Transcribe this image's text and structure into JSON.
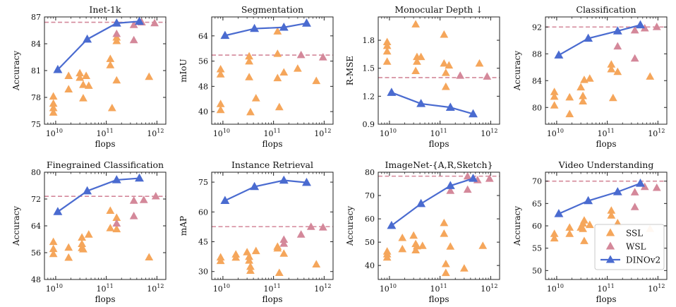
{
  "colors": {
    "ssl": "#F5A65B",
    "wsl": "#D4889A",
    "dino": "#4A6BD0",
    "wsl_line": "#D4889A"
  },
  "legend": {
    "position": "bottom-right-of-last-panel",
    "ssl": "SSL",
    "wsl": "WSL",
    "dino": "DINOv2"
  },
  "chart_data": [
    {
      "type": "scatter",
      "title": "Inet-1k",
      "xlabel": "flops",
      "ylabel": "Accuracy",
      "x_scale": "log",
      "xlim": [
        6000000000.0,
        1500000000000.0
      ],
      "ylim": [
        75,
        87
      ],
      "xticks": [
        {
          "v": 10000000000.0,
          "l": "10"
        },
        {
          "v": 100000000000.0,
          "l": "11"
        },
        {
          "v": 1000000000000.0,
          "l": "12"
        }
      ],
      "yticks": [
        75,
        78,
        81,
        84,
        87
      ],
      "ssl": [
        [
          9000000000.0,
          78.1
        ],
        [
          9000000000.0,
          77.3
        ],
        [
          9000000000.0,
          76.8
        ],
        [
          9000000000.0,
          76.3
        ],
        [
          18000000000.0,
          78.9
        ],
        [
          18000000000.0,
          80.4
        ],
        [
          30000000000.0,
          80.7
        ],
        [
          30000000000.0,
          80.2
        ],
        [
          35000000000.0,
          79.4
        ],
        [
          35000000000.0,
          77.9
        ],
        [
          40000000000.0,
          80.4
        ],
        [
          45000000000.0,
          79.3
        ],
        [
          120000000000.0,
          82.3
        ],
        [
          120000000000.0,
          81.6
        ],
        [
          130000000000.0,
          76.8
        ],
        [
          160000000000.0,
          84.7
        ],
        [
          160000000000.0,
          84.3
        ],
        [
          160000000000.0,
          79.9
        ],
        [
          700000000000.0,
          80.3
        ]
      ],
      "wsl": [
        [
          160000000000.0,
          85.1
        ],
        [
          350000000000.0,
          84.4
        ],
        [
          350000000000.0,
          86.1
        ],
        [
          500000000000.0,
          86.4
        ],
        [
          900000000000.0,
          86.3
        ]
      ],
      "dino": [
        [
          11000000000.0,
          81.1
        ],
        [
          42000000000.0,
          84.5
        ],
        [
          160000000000.0,
          86.3
        ],
        [
          450000000000.0,
          86.5
        ]
      ],
      "wsl_line": 86.4
    },
    {
      "type": "scatter",
      "title": "Segmentation",
      "xlabel": "flops",
      "ylabel": "mIoU",
      "x_scale": "log",
      "xlim": [
        6000000000.0,
        1500000000000.0
      ],
      "ylim": [
        36,
        70
      ],
      "xticks": [
        {
          "v": 10000000000.0,
          "l": "10"
        },
        {
          "v": 100000000000.0,
          "l": "11"
        },
        {
          "v": 1000000000000.0,
          "l": "12"
        }
      ],
      "yticks": [
        40,
        48,
        56,
        64
      ],
      "ssl": [
        [
          9000000000.0,
          53.4
        ],
        [
          9000000000.0,
          51.8
        ],
        [
          9000000000.0,
          42.4
        ],
        [
          9000000000.0,
          40.5
        ],
        [
          33000000000.0,
          57.5
        ],
        [
          33000000000.0,
          55.9
        ],
        [
          33000000000.0,
          50.9
        ],
        [
          35000000000.0,
          39.8
        ],
        [
          45000000000.0,
          44.2
        ],
        [
          120000000000.0,
          65.4
        ],
        [
          120000000000.0,
          58.3
        ],
        [
          120000000000.0,
          50.6
        ],
        [
          130000000000.0,
          41.4
        ],
        [
          160000000000.0,
          52.4
        ],
        [
          300000000000.0,
          53.6
        ],
        [
          700000000000.0,
          49.7
        ]
      ],
      "wsl": [
        [
          350000000000.0,
          57.9
        ],
        [
          950000000000.0,
          57.2
        ]
      ],
      "dino": [
        [
          11000000000.0,
          64.1
        ],
        [
          42000000000.0,
          66.3
        ],
        [
          160000000000.0,
          66.7
        ],
        [
          450000000000.0,
          68.0
        ]
      ],
      "wsl_line": 57.9
    },
    {
      "type": "scatter",
      "title": "Monocular Depth ↓",
      "xlabel": "flops",
      "ylabel": "R-MSE",
      "x_scale": "log",
      "xlim": [
        6000000000.0,
        1500000000000.0
      ],
      "ylim": [
        0.9,
        2.05
      ],
      "xticks": [
        {
          "v": 10000000000.0,
          "l": "10"
        },
        {
          "v": 100000000000.0,
          "l": "11"
        },
        {
          "v": 1000000000000.0,
          "l": "12"
        }
      ],
      "yticks": [
        0.9,
        1.2,
        1.5,
        1.8
      ],
      "ssl": [
        [
          9000000000.0,
          1.78
        ],
        [
          9000000000.0,
          1.74
        ],
        [
          9000000000.0,
          1.68
        ],
        [
          9000000000.0,
          1.57
        ],
        [
          33000000000.0,
          1.97
        ],
        [
          35000000000.0,
          1.62
        ],
        [
          35000000000.0,
          1.57
        ],
        [
          33000000000.0,
          1.47
        ],
        [
          42000000000.0,
          1.62
        ],
        [
          120000000000.0,
          1.86
        ],
        [
          120000000000.0,
          1.55
        ],
        [
          130000000000.0,
          1.45
        ],
        [
          130000000000.0,
          1.3
        ],
        [
          150000000000.0,
          1.53
        ],
        [
          600000000000.0,
          1.55
        ]
      ],
      "wsl": [
        [
          250000000000.0,
          1.42
        ],
        [
          850000000000.0,
          1.41
        ]
      ],
      "dino": [
        [
          11000000000.0,
          1.24
        ],
        [
          42000000000.0,
          1.12
        ],
        [
          160000000000.0,
          1.08
        ],
        [
          450000000000.0,
          1.01
        ]
      ],
      "wsl_line": 1.4
    },
    {
      "type": "scatter",
      "title": "Classification",
      "xlabel": "flops",
      "ylabel": "Accuracy",
      "x_scale": "log",
      "xlim": [
        6000000000.0,
        1500000000000.0
      ],
      "ylim": [
        77.5,
        93.5
      ],
      "xticks": [
        {
          "v": 10000000000.0,
          "l": "10"
        },
        {
          "v": 100000000000.0,
          "l": "11"
        },
        {
          "v": 1000000000000.0,
          "l": "12"
        }
      ],
      "yticks": [
        80,
        84,
        88,
        92
      ],
      "ssl": [
        [
          9000000000.0,
          82.3
        ],
        [
          9000000000.0,
          81.6
        ],
        [
          9000000000.0,
          80.3
        ],
        [
          18000000000.0,
          81.5
        ],
        [
          18000000000.0,
          79.0
        ],
        [
          30000000000.0,
          83.0
        ],
        [
          33000000000.0,
          81.7
        ],
        [
          33000000000.0,
          80.9
        ],
        [
          35000000000.0,
          84.1
        ],
        [
          45000000000.0,
          84.3
        ],
        [
          120000000000.0,
          86.4
        ],
        [
          120000000000.0,
          85.7
        ],
        [
          130000000000.0,
          81.4
        ],
        [
          160000000000.0,
          85.3
        ],
        [
          700000000000.0,
          84.6
        ]
      ],
      "wsl": [
        [
          160000000000.0,
          89.1
        ],
        [
          350000000000.0,
          87.3
        ],
        [
          350000000000.0,
          91.5
        ],
        [
          550000000000.0,
          91.8
        ],
        [
          950000000000.0,
          92.0
        ]
      ],
      "dino": [
        [
          11000000000.0,
          87.8
        ],
        [
          42000000000.0,
          90.3
        ],
        [
          160000000000.0,
          91.4
        ],
        [
          450000000000.0,
          92.3
        ]
      ],
      "wsl_line": 92.0
    },
    {
      "type": "scatter",
      "title": "Finegrained Classification",
      "xlabel": "flops",
      "ylabel": "Accuracy",
      "x_scale": "log",
      "xlim": [
        6000000000.0,
        1500000000000.0
      ],
      "ylim": [
        48,
        80
      ],
      "xticks": [
        {
          "v": 10000000000.0,
          "l": "10"
        },
        {
          "v": 100000000000.0,
          "l": "11"
        },
        {
          "v": 1000000000000.0,
          "l": "12"
        }
      ],
      "yticks": [
        48,
        56,
        64,
        72,
        80
      ],
      "ssl": [
        [
          9000000000.0,
          59.2
        ],
        [
          9000000000.0,
          57.1
        ],
        [
          9000000000.0,
          55.6
        ],
        [
          18000000000.0,
          57.5
        ],
        [
          18000000000.0,
          54.5
        ],
        [
          33000000000.0,
          60.5
        ],
        [
          33000000000.0,
          58.6
        ],
        [
          33000000000.0,
          57.4
        ],
        [
          35000000000.0,
          57.0
        ],
        [
          45000000000.0,
          61.4
        ],
        [
          120000000000.0,
          68.5
        ],
        [
          120000000000.0,
          63.3
        ],
        [
          160000000000.0,
          66.4
        ],
        [
          160000000000.0,
          63.0
        ],
        [
          700000000000.0,
          54.6
        ]
      ],
      "wsl": [
        [
          160000000000.0,
          64.7
        ],
        [
          350000000000.0,
          66.9
        ],
        [
          350000000000.0,
          71.5
        ],
        [
          550000000000.0,
          71.7
        ],
        [
          950000000000.0,
          72.8
        ]
      ],
      "dino": [
        [
          11000000000.0,
          68.2
        ],
        [
          42000000000.0,
          74.4
        ],
        [
          160000000000.0,
          77.7
        ],
        [
          450000000000.0,
          78.2
        ]
      ],
      "wsl_line": 72.8
    },
    {
      "type": "scatter",
      "title": "Instance Retrieval",
      "xlabel": "flops",
      "ylabel": "mAP",
      "x_scale": "log",
      "xlim": [
        6000000000.0,
        1500000000000.0
      ],
      "ylim": [
        26,
        80
      ],
      "xticks": [
        {
          "v": 10000000000.0,
          "l": "10"
        },
        {
          "v": 100000000000.0,
          "l": "11"
        },
        {
          "v": 1000000000000.0,
          "l": "12"
        }
      ],
      "yticks": [
        30,
        45,
        60,
        75
      ],
      "ssl": [
        [
          9000000000.0,
          37.1
        ],
        [
          9000000000.0,
          35.3
        ],
        [
          18000000000.0,
          37.0
        ],
        [
          18000000000.0,
          38.6
        ],
        [
          30000000000.0,
          39.7
        ],
        [
          33000000000.0,
          37.4
        ],
        [
          33000000000.0,
          35.5
        ],
        [
          35000000000.0,
          32.4
        ],
        [
          35000000000.0,
          30.4
        ],
        [
          45000000000.0,
          40.3
        ],
        [
          120000000000.0,
          42.5
        ],
        [
          120000000000.0,
          41.6
        ],
        [
          130000000000.0,
          29.3
        ],
        [
          160000000000.0,
          39.0
        ],
        [
          700000000000.0,
          33.6
        ]
      ],
      "wsl": [
        [
          160000000000.0,
          46.0
        ],
        [
          160000000000.0,
          44.0
        ],
        [
          350000000000.0,
          48.6
        ],
        [
          550000000000.0,
          52.5
        ],
        [
          950000000000.0,
          52.2
        ]
      ],
      "dino": [
        [
          11000000000.0,
          65.7
        ],
        [
          42000000000.0,
          72.7
        ],
        [
          160000000000.0,
          75.9
        ],
        [
          450000000000.0,
          74.8
        ]
      ],
      "wsl_line": 52.6
    },
    {
      "type": "scatter",
      "title": "ImageNet-{A,R,Sketch}",
      "xlabel": "flops",
      "ylabel": "Accuracy",
      "x_scale": "log",
      "xlim": [
        6000000000.0,
        1500000000000.0
      ],
      "ylim": [
        34,
        80
      ],
      "xticks": [
        {
          "v": 10000000000.0,
          "l": "10"
        },
        {
          "v": 100000000000.0,
          "l": "11"
        },
        {
          "v": 1000000000000.0,
          "l": "12"
        }
      ],
      "yticks": [
        40,
        50,
        60,
        70,
        80
      ],
      "ssl": [
        [
          9000000000.0,
          46.0
        ],
        [
          9000000000.0,
          44.8
        ],
        [
          9000000000.0,
          43.4
        ],
        [
          18000000000.0,
          51.8
        ],
        [
          18000000000.0,
          47.0
        ],
        [
          30000000000.0,
          52.8
        ],
        [
          33000000000.0,
          49.2
        ],
        [
          33000000000.0,
          46.5
        ],
        [
          35000000000.0,
          48.2
        ],
        [
          45000000000.0,
          48.4
        ],
        [
          120000000000.0,
          58.2
        ],
        [
          120000000000.0,
          53.6
        ],
        [
          130000000000.0,
          40.6
        ],
        [
          130000000000.0,
          36.8
        ],
        [
          160000000000.0,
          48.1
        ],
        [
          300000000000.0,
          38.7
        ],
        [
          700000000000.0,
          48.4
        ]
      ],
      "wsl": [
        [
          160000000000.0,
          72.0
        ],
        [
          350000000000.0,
          72.5
        ],
        [
          350000000000.0,
          78.2
        ],
        [
          550000000000.0,
          76.6
        ],
        [
          950000000000.0,
          77.2
        ]
      ],
      "dino": [
        [
          11000000000.0,
          57.1
        ],
        [
          42000000000.0,
          66.5
        ],
        [
          160000000000.0,
          74.2
        ],
        [
          450000000000.0,
          77.3
        ]
      ],
      "wsl_line": 78.3
    },
    {
      "type": "scatter",
      "title": "Video Understanding",
      "xlabel": "flops",
      "ylabel": "Accuracy",
      "x_scale": "log",
      "xlim": [
        6000000000.0,
        1500000000000.0
      ],
      "ylim": [
        48,
        72
      ],
      "xticks": [
        {
          "v": 10000000000.0,
          "l": "10"
        },
        {
          "v": 100000000000.0,
          "l": "11"
        },
        {
          "v": 1000000000000.0,
          "l": "12"
        }
      ],
      "yticks": [
        50,
        55,
        60,
        65,
        70
      ],
      "ssl": [
        [
          9000000000.0,
          58.2
        ],
        [
          9000000000.0,
          57.2
        ],
        [
          18000000000.0,
          59.6
        ],
        [
          18000000000.0,
          58.2
        ],
        [
          30000000000.0,
          59.6
        ],
        [
          33000000000.0,
          60.5
        ],
        [
          33000000000.0,
          59.3
        ],
        [
          35000000000.0,
          56.6
        ],
        [
          35000000000.0,
          61.2
        ],
        [
          45000000000.0,
          60.2
        ],
        [
          120000000000.0,
          63.4
        ],
        [
          120000000000.0,
          62.3
        ],
        [
          160000000000.0,
          60.6
        ],
        [
          700000000000.0,
          59.3
        ]
      ],
      "wsl": [
        [
          350000000000.0,
          64.2
        ],
        [
          350000000000.0,
          67.5
        ],
        [
          550000000000.0,
          68.7
        ],
        [
          950000000000.0,
          68.5
        ]
      ],
      "dino": [
        [
          11000000000.0,
          62.7
        ],
        [
          42000000000.0,
          65.6
        ],
        [
          160000000000.0,
          67.6
        ],
        [
          450000000000.0,
          69.5
        ]
      ],
      "wsl_line": 70.0
    }
  ]
}
